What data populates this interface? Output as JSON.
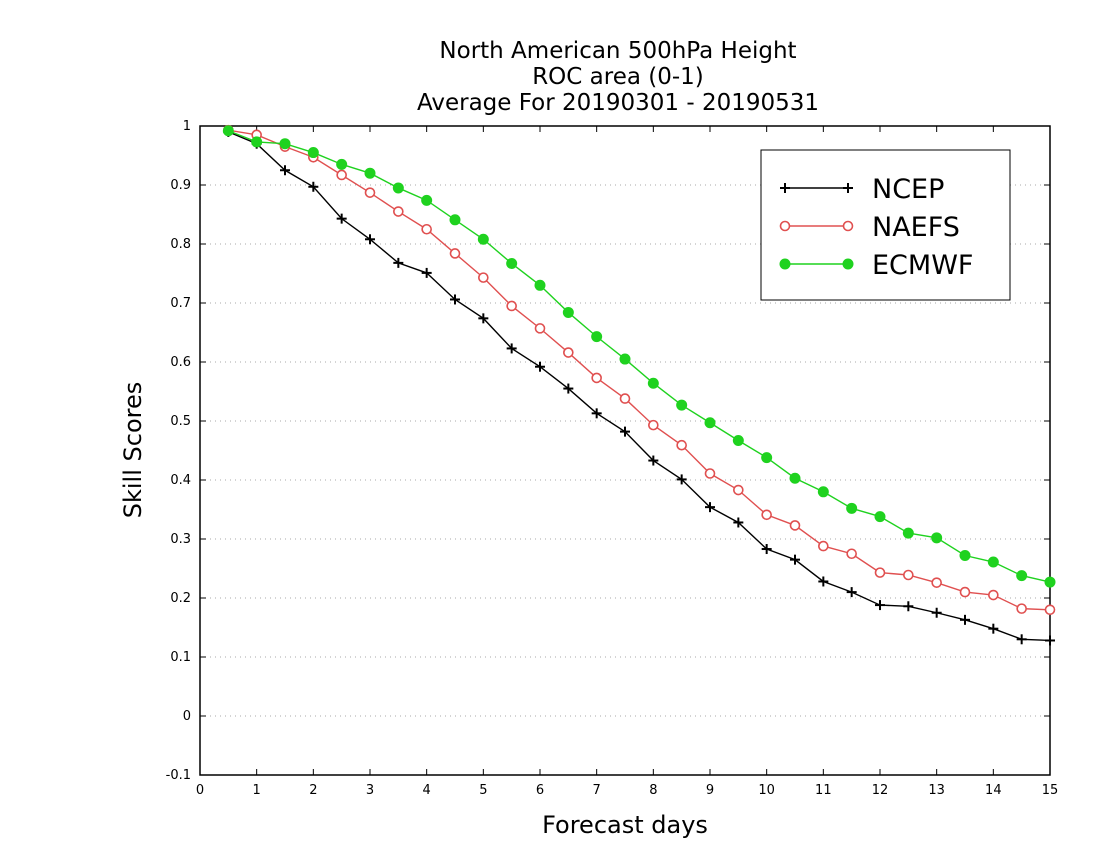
{
  "chart_data": {
    "type": "line",
    "title": [
      "North American 500hPa Height",
      "ROC area (0-1)",
      "Average For 20190301 - 20190531"
    ],
    "xlabel": "Forecast days",
    "ylabel": "Skill Scores",
    "xlim": [
      0,
      15
    ],
    "ylim": [
      -0.1,
      1
    ],
    "xticks": [
      "0",
      "1",
      "2",
      "3",
      "4",
      "5",
      "6",
      "7",
      "8",
      "9",
      "10",
      "11",
      "12",
      "13",
      "14",
      "15"
    ],
    "yticks": [
      "-0.1",
      "0",
      "0.1",
      "0.2",
      "0.3",
      "0.4",
      "0.5",
      "0.6",
      "0.7",
      "0.8",
      "0.9",
      "1"
    ],
    "grid": "horizontal dotted",
    "legend_position": "top-right",
    "x": [
      0.5,
      1,
      1.5,
      2,
      2.5,
      3,
      3.5,
      4,
      4.5,
      5,
      5.5,
      6,
      6.5,
      7,
      7.5,
      8,
      8.5,
      9,
      9.5,
      10,
      10.5,
      11,
      11.5,
      12,
      12.5,
      13,
      13.5,
      14,
      14.5,
      15
    ],
    "series": [
      {
        "name": "NCEP",
        "color": "#000000",
        "marker": "plus",
        "values": [
          0.99,
          0.97,
          0.925,
          0.897,
          0.843,
          0.808,
          0.768,
          0.751,
          0.706,
          0.674,
          0.623,
          0.592,
          0.555,
          0.513,
          0.482,
          0.433,
          0.401,
          0.354,
          0.328,
          0.283,
          0.265,
          0.228,
          0.21,
          0.188,
          0.186,
          0.175,
          0.163,
          0.148,
          0.13,
          0.128
        ]
      },
      {
        "name": "NAEFS",
        "color": "#e05050",
        "marker": "open-circle",
        "values": [
          0.993,
          0.985,
          0.965,
          0.947,
          0.917,
          0.887,
          0.855,
          0.825,
          0.784,
          0.743,
          0.695,
          0.657,
          0.616,
          0.573,
          0.538,
          0.493,
          0.459,
          0.411,
          0.383,
          0.341,
          0.323,
          0.288,
          0.275,
          0.243,
          0.239,
          0.226,
          0.21,
          0.205,
          0.182,
          0.18
        ]
      },
      {
        "name": "ECMWF",
        "color": "#1fd21f",
        "marker": "filled-circle",
        "values": [
          0.992,
          0.973,
          0.97,
          0.955,
          0.935,
          0.92,
          0.895,
          0.874,
          0.841,
          0.808,
          0.767,
          0.73,
          0.684,
          0.643,
          0.605,
          0.564,
          0.527,
          0.497,
          0.467,
          0.438,
          0.403,
          0.38,
          0.352,
          0.338,
          0.31,
          0.302,
          0.272,
          0.261,
          0.238,
          0.227
        ]
      }
    ]
  }
}
